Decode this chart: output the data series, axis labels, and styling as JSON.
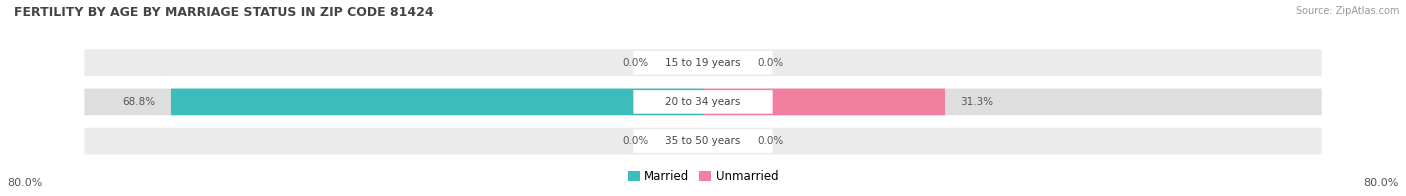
{
  "title": "FERTILITY BY AGE BY MARRIAGE STATUS IN ZIP CODE 81424",
  "source": "Source: ZipAtlas.com",
  "rows": [
    {
      "label": "15 to 19 years",
      "married": 0.0,
      "unmarried": 0.0
    },
    {
      "label": "20 to 34 years",
      "married": 68.8,
      "unmarried": 31.3
    },
    {
      "label": "35 to 50 years",
      "married": 0.0,
      "unmarried": 0.0
    }
  ],
  "max_val": 80.0,
  "married_color": "#3dbcbc",
  "unmarried_color": "#f27fa0",
  "row_bg_light": "#ebebeb",
  "row_bg_dark": "#dedede",
  "title_color": "#444444",
  "value_color": "#555555",
  "label_color": "#444444",
  "legend_married": "Married",
  "legend_unmarried": "Unmarried",
  "axis_label_left": "80.0%",
  "axis_label_right": "80.0%"
}
